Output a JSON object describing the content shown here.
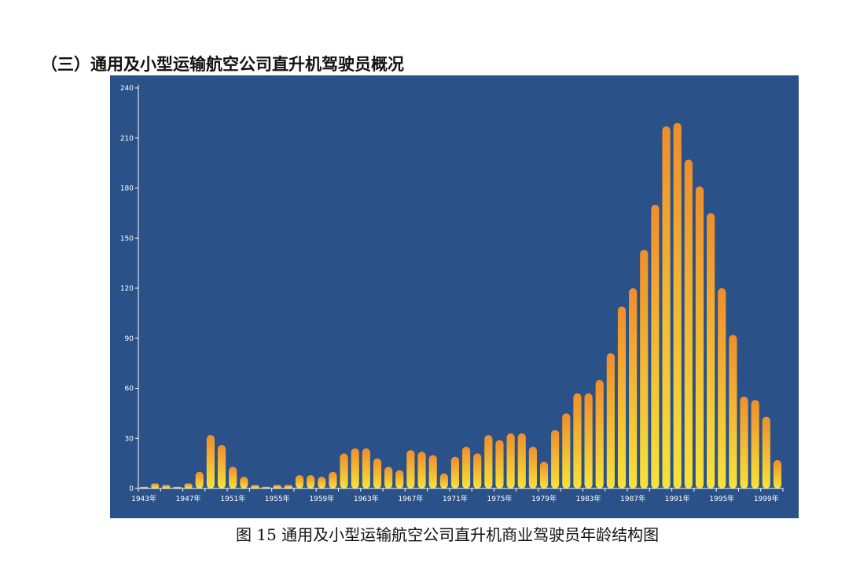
{
  "heading": "（三）通用及小型运输航空公司直升机驾驶员概况",
  "caption": "图 15  通用及小型运输航空公司直升机商业驾驶员年龄结构图",
  "colors": {
    "panel_background": "#2b5288",
    "bar_top": "#ef8e2c",
    "bar_bottom": "#f6e23b",
    "axis": "#ffffff"
  },
  "chart_data": {
    "type": "bar",
    "title": "",
    "xlabel": "",
    "ylabel": "",
    "ylim": [
      0,
      240
    ],
    "y_ticks": [
      0,
      30,
      60,
      90,
      120,
      150,
      180,
      210,
      240
    ],
    "x_tick_labels": [
      "1943年",
      "1947年",
      "1951年",
      "1955年",
      "1959年",
      "1963年",
      "1967年",
      "1971年",
      "1975年",
      "1979年",
      "1983年",
      "1987年",
      "1991年",
      "1995年",
      "1999年"
    ],
    "grid": false,
    "categories": [
      "1943年",
      "1944年",
      "1945年",
      "1946年",
      "1947年",
      "1948年",
      "1949年",
      "1950年",
      "1951年",
      "1952年",
      "1953年",
      "1954年",
      "1955年",
      "1956年",
      "1957年",
      "1958年",
      "1959年",
      "1960年",
      "1961年",
      "1962年",
      "1963年",
      "1964年",
      "1965年",
      "1966年",
      "1967年",
      "1968年",
      "1969年",
      "1970年",
      "1971年",
      "1972年",
      "1973年",
      "1974年",
      "1975年",
      "1976年",
      "1977年",
      "1978年",
      "1979年",
      "1980年",
      "1981年",
      "1982年",
      "1983年",
      "1984年",
      "1985年",
      "1986年",
      "1987年",
      "1988年",
      "1989年",
      "1990年",
      "1991年",
      "1992年",
      "1993年",
      "1994年",
      "1995年",
      "1996年",
      "1997年",
      "1998年",
      "1999年",
      "2000年"
    ],
    "values": [
      1,
      3,
      2,
      1,
      3,
      10,
      32,
      26,
      13,
      7,
      2,
      1,
      2,
      2,
      8,
      8,
      7,
      10,
      21,
      24,
      24,
      18,
      13,
      11,
      23,
      22,
      20,
      9,
      19,
      25,
      21,
      32,
      29,
      33,
      33,
      25,
      16,
      35,
      45,
      57,
      57,
      65,
      81,
      109,
      120,
      143,
      170,
      217,
      219,
      197,
      181,
      165,
      120,
      92,
      55,
      53,
      43,
      17
    ]
  }
}
